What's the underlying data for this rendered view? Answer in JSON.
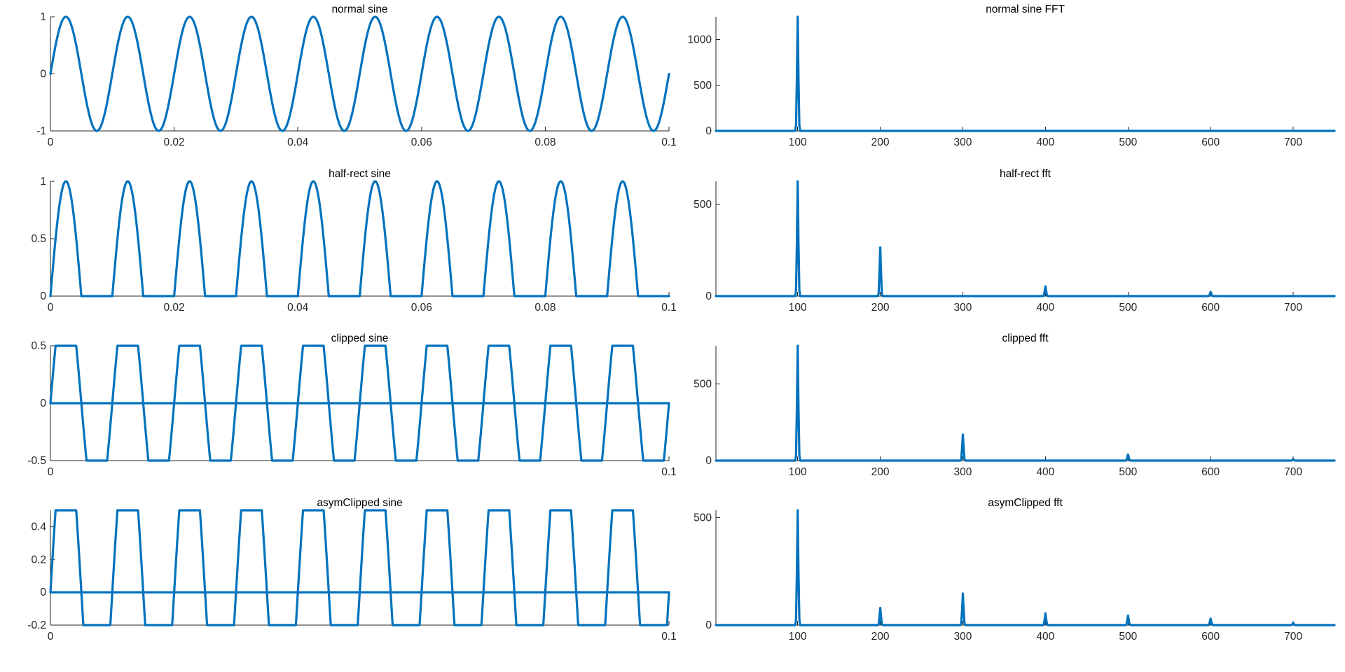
{
  "figure": {
    "background": "#ffffff",
    "line_color": "#0072BD"
  },
  "chart_data": [
    {
      "type": "line",
      "title": "normal sine",
      "xlabel": "",
      "ylabel": "",
      "xlim": [
        0,
        0.1
      ],
      "ylim": [
        -1,
        1
      ],
      "x_ticks": [
        0,
        0.02,
        0.04,
        0.06,
        0.08,
        0.1
      ],
      "x_tick_labels": [
        "0",
        "0.02",
        "0.04",
        "0.06",
        "0.08",
        "0.1"
      ],
      "y_ticks": [
        -1,
        0,
        1
      ],
      "y_tick_labels": [
        "-1",
        "0",
        "1"
      ],
      "grid": false,
      "series": [
        {
          "values": {
            "signal": "sine",
            "frequency": 100,
            "amplitude": 1,
            "t_start": 0,
            "t_end": 0.1
          }
        }
      ]
    },
    {
      "type": "line",
      "title": "normal sine FFT",
      "xlabel": "",
      "ylabel": "",
      "xlim": [
        1,
        750
      ],
      "ylim": [
        0,
        1250
      ],
      "x_ticks": [
        100,
        200,
        300,
        400,
        500,
        600,
        700
      ],
      "x_tick_labels": [
        "100",
        "200",
        "300",
        "400",
        "500",
        "600",
        "700"
      ],
      "y_ticks": [
        0,
        500,
        1000
      ],
      "y_tick_labels": [
        "0",
        "500",
        "1000"
      ],
      "grid": false,
      "series": [
        {
          "peaks": [
            {
              "x": 100,
              "y": 1250
            }
          ]
        }
      ]
    },
    {
      "type": "line",
      "title": "half-rect sine",
      "xlabel": "",
      "ylabel": "",
      "xlim": [
        0,
        0.1
      ],
      "ylim": [
        0,
        1
      ],
      "x_ticks": [
        0,
        0.02,
        0.04,
        0.06,
        0.08,
        0.1
      ],
      "x_tick_labels": [
        "0",
        "0.02",
        "0.04",
        "0.06",
        "0.08",
        "0.1"
      ],
      "y_ticks": [
        0,
        0.5,
        1
      ],
      "y_tick_labels": [
        "0",
        "0.5",
        "1"
      ],
      "grid": false,
      "series": [
        {
          "values": {
            "signal": "half-rectified sine",
            "frequency": 100,
            "amplitude": 1,
            "t_start": 0,
            "t_end": 0.1
          }
        }
      ]
    },
    {
      "type": "line",
      "title": "half-rect fft",
      "xlabel": "",
      "ylabel": "",
      "xlim": [
        1,
        750
      ],
      "ylim": [
        0,
        625
      ],
      "x_ticks": [
        100,
        200,
        300,
        400,
        500,
        600,
        700
      ],
      "x_tick_labels": [
        "100",
        "200",
        "300",
        "400",
        "500",
        "600",
        "700"
      ],
      "y_ticks": [
        0,
        500
      ],
      "y_tick_labels": [
        "0",
        "500"
      ],
      "grid": false,
      "series": [
        {
          "peaks": [
            {
              "x": 100,
              "y": 625
            },
            {
              "x": 200,
              "y": 265
            },
            {
              "x": 400,
              "y": 53
            },
            {
              "x": 600,
              "y": 23
            }
          ]
        }
      ]
    },
    {
      "type": "line",
      "title": "clipped sine",
      "xlabel": "",
      "ylabel": "",
      "xlim": [
        0,
        0.1
      ],
      "ylim": [
        -0.5,
        0.5
      ],
      "x_ticks": [
        0,
        0.1
      ],
      "x_tick_labels": [
        "0",
        "0.1"
      ],
      "y_ticks": [
        -0.5,
        0,
        0.5
      ],
      "y_tick_labels": [
        "-0.5",
        "0",
        "0.5"
      ],
      "grid": false,
      "series": [
        {
          "values": {
            "signal": "sine clipped at ±0.5",
            "frequency": 100,
            "amplitude": 1,
            "clip_low": -0.5,
            "clip_high": 0.5,
            "t_start": 0,
            "t_end": 0.1
          }
        }
      ]
    },
    {
      "type": "line",
      "title": "clipped fft",
      "xlabel": "",
      "ylabel": "",
      "xlim": [
        1,
        750
      ],
      "ylim": [
        0,
        750
      ],
      "x_ticks": [
        100,
        200,
        300,
        400,
        500,
        600,
        700
      ],
      "x_tick_labels": [
        "100",
        "200",
        "300",
        "400",
        "500",
        "600",
        "700"
      ],
      "y_ticks": [
        0,
        500
      ],
      "y_tick_labels": [
        "0",
        "500"
      ],
      "grid": false,
      "series": [
        {
          "peaks": [
            {
              "x": 100,
              "y": 750
            },
            {
              "x": 300,
              "y": 170
            },
            {
              "x": 500,
              "y": 40
            },
            {
              "x": 700,
              "y": 10
            }
          ]
        }
      ]
    },
    {
      "type": "line",
      "title": "asymClipped sine",
      "xlabel": "",
      "ylabel": "",
      "xlim": [
        0,
        0.1
      ],
      "ylim": [
        -0.2,
        0.5
      ],
      "x_ticks": [
        0,
        0.1
      ],
      "x_tick_labels": [
        "0",
        "0.1"
      ],
      "y_ticks": [
        -0.2,
        0,
        0.2,
        0.4
      ],
      "y_tick_labels": [
        "-0.2",
        "0",
        "0.2",
        "0.4"
      ],
      "grid": false,
      "series": [
        {
          "values": {
            "signal": "sine clipped at -0.2 / 0.5",
            "frequency": 100,
            "amplitude": 1,
            "clip_low": -0.2,
            "clip_high": 0.5,
            "t_start": 0,
            "t_end": 0.1
          }
        }
      ]
    },
    {
      "type": "line",
      "title": "asymClipped fft",
      "xlabel": "",
      "ylabel": "",
      "xlim": [
        1,
        750
      ],
      "ylim": [
        0,
        535
      ],
      "x_ticks": [
        100,
        200,
        300,
        400,
        500,
        600,
        700
      ],
      "x_tick_labels": [
        "100",
        "200",
        "300",
        "400",
        "500",
        "600",
        "700"
      ],
      "y_ticks": [
        0,
        500
      ],
      "y_tick_labels": [
        "0",
        "500"
      ],
      "grid": false,
      "series": [
        {
          "peaks": [
            {
              "x": 100,
              "y": 535
            },
            {
              "x": 200,
              "y": 80
            },
            {
              "x": 300,
              "y": 147
            },
            {
              "x": 400,
              "y": 55
            },
            {
              "x": 500,
              "y": 45
            },
            {
              "x": 600,
              "y": 30
            },
            {
              "x": 700,
              "y": 10
            }
          ]
        }
      ]
    }
  ]
}
